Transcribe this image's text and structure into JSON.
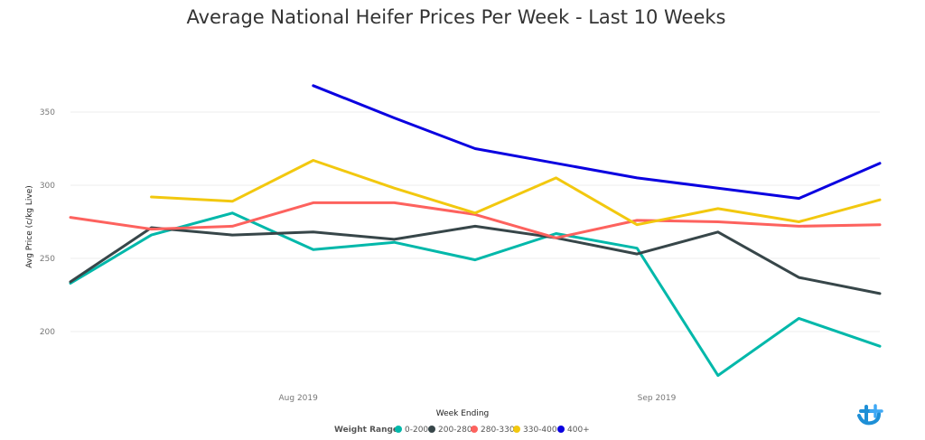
{
  "colors": {
    "0-200": "#01B8AA",
    "200-280": "#374649",
    "280-330": "#FD625E",
    "330-400": "#F2C80F",
    "400+": "#0A00E0",
    "logo": "#1E8FD6"
  },
  "logo_icon": "brand-logo",
  "chart_data": {
    "type": "line",
    "title": "Average National Heifer Prices Per Week - Last 10 Weeks",
    "xlabel": "Week Ending",
    "ylabel": "Avg Price (c/kg Live)",
    "x": [
      "2019-07-13",
      "2019-07-20",
      "2019-07-27",
      "2019-08-03",
      "2019-08-10",
      "2019-08-17",
      "2019-08-24",
      "2019-08-31",
      "2019-09-07",
      "2019-09-14",
      "2019-09-21"
    ],
    "x_ticks": [
      {
        "date": "2019-08-01",
        "label": "Aug 2019"
      },
      {
        "date": "2019-09-01",
        "label": "Sep 2019"
      }
    ],
    "ylim": [
      155,
      380
    ],
    "y_ticks": [
      200,
      250,
      300,
      350
    ],
    "grid": true,
    "legend_title": "Weight Range",
    "legend_position": "bottom-center",
    "series": [
      {
        "name": "0-200",
        "values": [
          233,
          266,
          281,
          256,
          261,
          249,
          267,
          257,
          170,
          209,
          190
        ]
      },
      {
        "name": "200-280",
        "values": [
          234,
          271,
          266,
          268,
          263,
          272,
          264,
          253,
          268,
          237,
          226
        ]
      },
      {
        "name": "280-330",
        "values": [
          278,
          270,
          272,
          288,
          288,
          280,
          264,
          276,
          275,
          272,
          273
        ]
      },
      {
        "name": "330-400",
        "values": [
          null,
          292,
          289,
          317,
          298,
          281,
          305,
          273,
          284,
          275,
          290
        ]
      },
      {
        "name": "400+",
        "values": [
          null,
          null,
          null,
          368,
          346,
          325,
          315,
          305,
          298,
          291,
          315
        ]
      }
    ]
  }
}
